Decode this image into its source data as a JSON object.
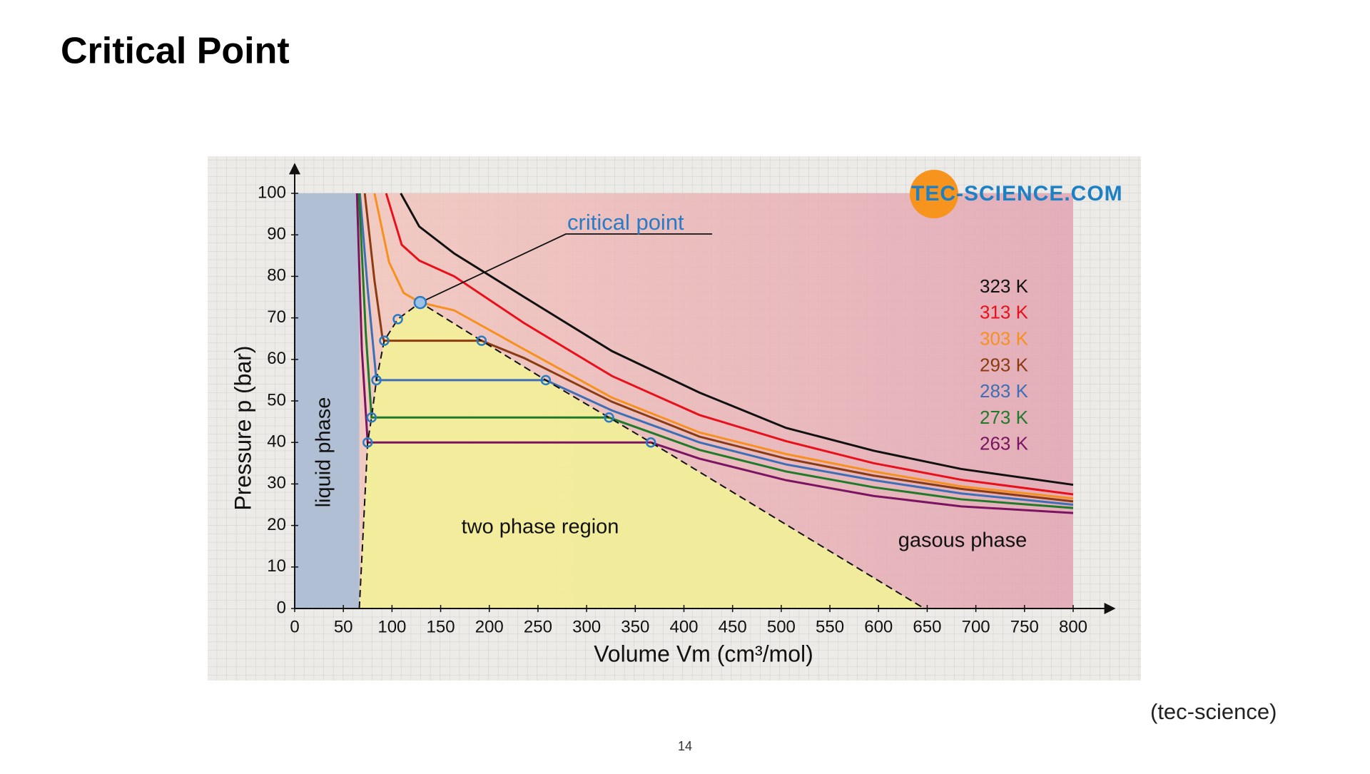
{
  "slide": {
    "title": "Critical Point",
    "source": "(tec-science)",
    "page_number": "14"
  },
  "chart_data": {
    "type": "line",
    "x_label": "Volume Vm (cm³/mol)",
    "y_label": "Pressure p (bar)",
    "xlim": [
      0,
      800
    ],
    "xticks": [
      0,
      50,
      100,
      150,
      200,
      250,
      300,
      350,
      400,
      450,
      500,
      550,
      600,
      650,
      700,
      750,
      800
    ],
    "ylim": [
      0,
      100
    ],
    "yticks": [
      0,
      10,
      20,
      30,
      40,
      50,
      60,
      70,
      80,
      90,
      100
    ],
    "logo": "TEC-SCIENCE.COM",
    "annotations": {
      "critical_point": "critical point",
      "liquid": "liquid phase",
      "two_phase": "two phase region",
      "gas": "gasous phase"
    },
    "critical_point": {
      "x": 129,
      "y": 73.7
    },
    "series": [
      {
        "name": "323 K",
        "color": "#111111",
        "x": [
          109,
          128,
          164,
          236,
          326,
          416,
          505,
          595,
          685,
          800
        ],
        "values": [
          100,
          92,
          85.5,
          75,
          62,
          52,
          43.5,
          38,
          33.6,
          29.8
        ]
      },
      {
        "name": "313 K",
        "color": "#e8101a",
        "x": [
          94,
          110,
          128,
          164,
          236,
          326,
          416,
          505,
          595,
          685,
          800
        ],
        "values": [
          100,
          87.6,
          83.8,
          80,
          68.7,
          56,
          46.6,
          40.3,
          35,
          31,
          27.5
        ]
      },
      {
        "name": "303 K",
        "color": "#f7901e",
        "x": [
          82,
          97,
          112,
          129,
          164,
          236,
          326,
          416,
          505,
          595,
          685,
          800
        ],
        "values": [
          100,
          83.4,
          76,
          73.7,
          71.8,
          62.4,
          50.8,
          42.4,
          37.2,
          33,
          29.4,
          26.5
        ]
      },
      {
        "name": "293 K",
        "color": "#8b3a12",
        "x": [
          72,
          82,
          90,
          92,
          192,
          236,
          326,
          416,
          505,
          595,
          685,
          800
        ],
        "values": [
          100,
          79,
          65.5,
          64.5,
          64.5,
          60.3,
          49.8,
          41.4,
          36.1,
          32,
          28.8,
          25.8
        ]
      },
      {
        "name": "283 K",
        "color": "#3d6fb6",
        "x": [
          67,
          75,
          84,
          258,
          326,
          416,
          505,
          595,
          685,
          800
        ],
        "values": [
          100,
          77,
          55,
          55,
          47.7,
          40,
          34.7,
          30.9,
          27.7,
          25
        ]
      },
      {
        "name": "273 K",
        "color": "#1f7a2a",
        "x": [
          66,
          73,
          79,
          323,
          416,
          505,
          595,
          685,
          800
        ],
        "values": [
          100,
          66.6,
          46,
          46,
          38.2,
          33,
          29.2,
          26.3,
          24.2
        ]
      },
      {
        "name": "263 K",
        "color": "#7a1460",
        "x": [
          64,
          69,
          75,
          366,
          416,
          505,
          595,
          685,
          800
        ],
        "values": [
          100,
          62.4,
          40,
          40,
          36.1,
          30.9,
          27.1,
          24.6,
          23
        ]
      },
      {
        "color": "#111111",
        "dashed": true,
        "markers": true,
        "x": [
          66.4,
          75,
          79,
          84,
          92,
          106,
          129,
          192,
          258,
          323,
          366,
          647
        ],
        "values": [
          0,
          40,
          46,
          55,
          64.5,
          69.7,
          73.7,
          64.5,
          55,
          46,
          40,
          0
        ]
      }
    ]
  }
}
